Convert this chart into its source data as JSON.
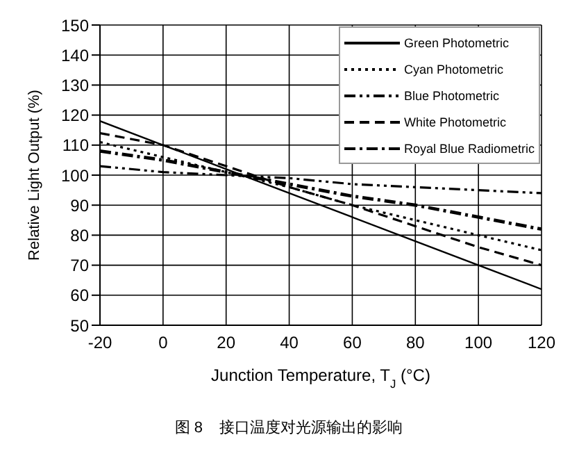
{
  "chart_data": {
    "type": "line",
    "xlabel": "Junction Temperature, T$_{J}$ (°C)",
    "ylabel": "Relative Light Output (%)",
    "annotations": [
      "图 8    接口温度对光源输出的影响"
    ],
    "x": [
      -20,
      0,
      20,
      40,
      60,
      80,
      100,
      120
    ],
    "xlim": [
      -20,
      120
    ],
    "xticks": [
      -20,
      0,
      20,
      40,
      60,
      80,
      100,
      120
    ],
    "ylim": [
      50,
      150
    ],
    "yticks": [
      50,
      60,
      70,
      80,
      90,
      100,
      110,
      120,
      130,
      140,
      150
    ],
    "grid": true,
    "legend": "top right",
    "marker": "none",
    "series": [
      {
        "name": "Green Photometric",
        "color": "#000000",
        "line_style": "solid",
        "values": [
          118,
          110,
          102,
          94,
          86,
          78,
          70,
          62
        ]
      },
      {
        "name": "Cyan Photometric",
        "color": "#000000",
        "line_style": "dotted",
        "values": [
          111,
          106,
          101,
          96,
          90,
          85,
          80,
          75
        ]
      },
      {
        "name": "Blue Photometric",
        "color": "#000000",
        "line_style": "dashdotdot",
        "values": [
          103,
          101,
          100,
          99,
          97,
          96,
          95,
          94
        ]
      },
      {
        "name": "White Photometric",
        "color": "#000000",
        "line_style": "dashed",
        "values": [
          114,
          110,
          103,
          96,
          90,
          83,
          76,
          70
        ]
      },
      {
        "name": "Royal Blue Radiometric",
        "color": "#000000",
        "line_style": "dashdot",
        "values": [
          108,
          105,
          101,
          97,
          93,
          90,
          86,
          82
        ]
      }
    ]
  }
}
